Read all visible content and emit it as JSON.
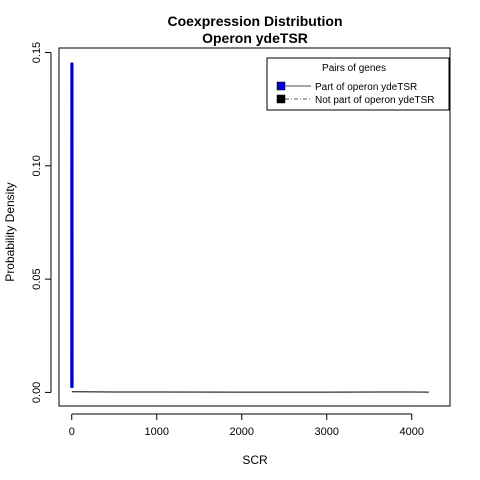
{
  "chart_data": {
    "type": "line",
    "title": "Coexpression Distribution",
    "subtitle": "Operon ydeTSR",
    "xlabel": "SCR",
    "ylabel": "Probability Density",
    "xlim": [
      -150,
      4450
    ],
    "ylim": [
      -0.006,
      0.152
    ],
    "x_ticks": [
      0,
      1000,
      2000,
      3000,
      4000
    ],
    "x_tick_labels": [
      "0",
      "1000",
      "2000",
      "3000",
      "4000"
    ],
    "y_ticks": [
      0,
      0.05,
      0.1,
      0.15
    ],
    "y_tick_labels": [
      "0.00",
      "0.05",
      "0.10",
      "0.15"
    ],
    "grid": false,
    "legend": {
      "title": "Pairs of genes",
      "placement": "top-right",
      "entries": [
        {
          "label": "Part of operon ydeTSR",
          "color": "#0000cc",
          "line_color": "#888888",
          "line_style": "solid"
        },
        {
          "label": "Not part of operon ydeTSR",
          "color": "#000000",
          "line_color": "#555555",
          "line_style": "dashdot"
        }
      ]
    },
    "series": [
      {
        "name": "Part of operon ydeTSR",
        "color": "#0000cc",
        "x": [
          0,
          1,
          2,
          3,
          4
        ],
        "y": [
          0.002,
          0.145,
          0.145,
          0.145,
          0.002
        ]
      },
      {
        "name": "Not part of operon ydeTSR",
        "color": "#000000",
        "x": [
          0,
          500,
          1000,
          2000,
          3000,
          4000,
          4200
        ],
        "y": [
          0.0003,
          0.0002,
          0.0002,
          0.0001,
          0.0001,
          0.0002,
          0.0001
        ]
      }
    ]
  }
}
